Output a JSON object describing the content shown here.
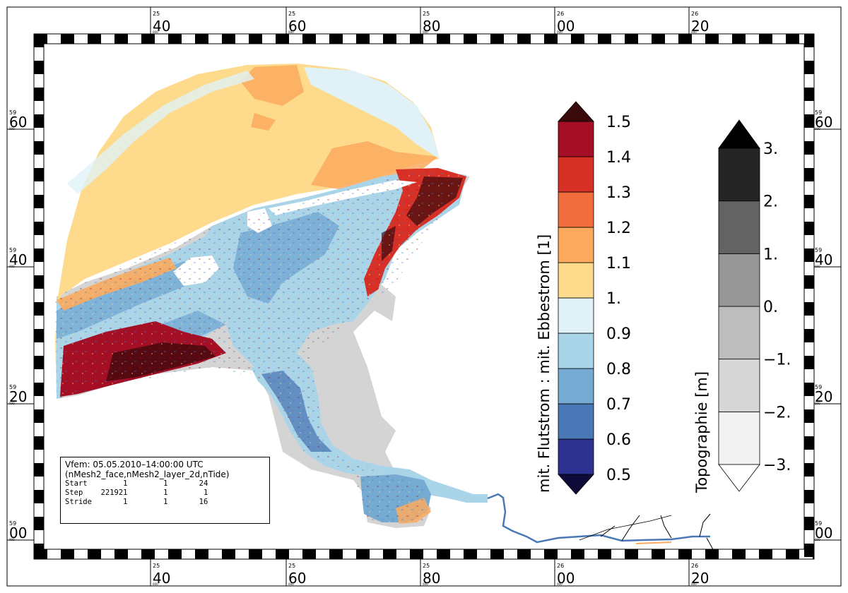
{
  "map": {
    "top_axis_labels": [
      {
        "deg": "25",
        "min": "40",
        "sec": "000"
      },
      {
        "deg": "25",
        "min": "60",
        "sec": "000"
      },
      {
        "deg": "25",
        "min": "80",
        "sec": "000"
      },
      {
        "deg": "26",
        "min": "00",
        "sec": "000"
      },
      {
        "deg": "26",
        "min": "20",
        "sec": "000"
      }
    ],
    "bottom_axis_labels": [
      {
        "deg": "25",
        "min": "40",
        "sec": "000"
      },
      {
        "deg": "25",
        "min": "60",
        "sec": "000"
      },
      {
        "deg": "25",
        "min": "80",
        "sec": "000"
      },
      {
        "deg": "26",
        "min": "00",
        "sec": "000"
      },
      {
        "deg": "26",
        "min": "20",
        "sec": "000"
      }
    ],
    "side_axis_labels": [
      {
        "deg": "59",
        "min": "60",
        "sec": "000"
      },
      {
        "deg": "59",
        "min": "40",
        "sec": "000"
      },
      {
        "deg": "59",
        "min": "20",
        "sec": "000"
      },
      {
        "deg": "59",
        "min": "00",
        "sec": "000"
      }
    ],
    "colors": {
      "ratio_scale": [
        "#2d3190",
        "#4a77b6",
        "#75aad3",
        "#aad4e8",
        "#e0f2f7",
        "#fdda8c",
        "#fbaa5e",
        "#f26d3e",
        "#d73027",
        "#a50f26"
      ],
      "ratio_low": "#0e0b3a",
      "ratio_high": "#3b0a0b",
      "topo_scale": [
        "#f2f2f2",
        "#d7d7d7",
        "#bdbdbd",
        "#969696",
        "#636363",
        "#252525"
      ],
      "topo_low": "#ffffff",
      "topo_high": "#000000",
      "land": "#d4d4d4"
    }
  },
  "legend_ratio": {
    "title": "mit. Flutstrom : mit. Ebbestrom [1]",
    "ticks": [
      "0.5",
      "0.6",
      "0.7",
      "0.8",
      "0.9",
      "1.",
      "1.1",
      "1.2",
      "1.3",
      "1.4",
      "1.5"
    ]
  },
  "legend_topo": {
    "title": "Topographie [m]",
    "ticks": [
      "−3.",
      "−2.",
      "−1.",
      "0.",
      "1.",
      "2.",
      "3."
    ]
  },
  "info_box": {
    "line1": "Vfem: 05.05.2010–14:00:00 UTC",
    "line2": "(nMesh2_face,nMesh2_layer_2d,nTide)",
    "start": "Start        1        1       24",
    "step": "Step    221921        1        1",
    "stride": "Stride       1        1       16"
  }
}
